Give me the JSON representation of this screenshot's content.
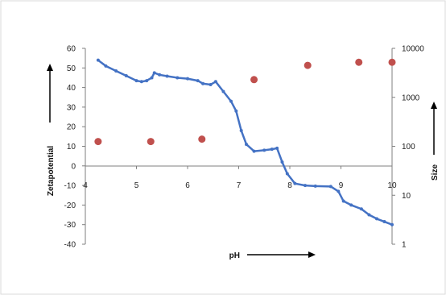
{
  "chart_data": {
    "type": "scatter",
    "xlabel": "pH",
    "ylabel": "Zetapotential",
    "y2label": "Size",
    "xlim": [
      4,
      10
    ],
    "ylim": [
      -40,
      60
    ],
    "y2lim": [
      1,
      10000
    ],
    "y2scale": "log",
    "x_ticks": [
      "4",
      "5",
      "6",
      "7",
      "8",
      "9",
      "10"
    ],
    "y_ticks": [
      "60",
      "50",
      "40",
      "30",
      "20",
      "10",
      "0",
      "-10",
      "-20",
      "-30",
      "-40"
    ],
    "y2_ticks": [
      "10000",
      "1000",
      "100",
      "10",
      "1"
    ],
    "grid": false,
    "legend": "none",
    "colors": {
      "zeta": "#4472C4",
      "size": "#C0504D"
    },
    "series": [
      {
        "axis": "left",
        "style": "line-markers",
        "x": [
          4.25,
          4.4,
          4.6,
          4.8,
          5.0,
          5.1,
          5.2,
          5.3,
          5.35,
          5.45,
          5.6,
          5.8,
          6.0,
          6.2,
          6.3,
          6.45,
          6.55,
          6.7,
          6.85,
          6.95,
          7.05,
          7.15,
          7.3,
          7.5,
          7.65,
          7.75,
          7.85,
          7.95,
          8.1,
          8.3,
          8.5,
          8.8,
          8.95,
          9.05,
          9.2,
          9.4,
          9.55,
          9.7,
          9.85,
          10.0
        ],
        "y": [
          54,
          51,
          48.5,
          46,
          43.5,
          43,
          43.5,
          45,
          47.5,
          46.5,
          45.8,
          45,
          44.5,
          43.5,
          42,
          41.5,
          43,
          38,
          33,
          28,
          18,
          11,
          7.5,
          8,
          8.5,
          9,
          2,
          -4,
          -9,
          -10,
          -10.3,
          -10.5,
          -13,
          -18,
          -20,
          -22,
          -25,
          -27,
          -28.5,
          -30
        ]
      },
      {
        "axis": "right",
        "style": "markers",
        "x": [
          4.25,
          5.28,
          6.28,
          7.3,
          8.35,
          9.35,
          10.0
        ],
        "y": [
          125,
          125,
          140,
          2300,
          4500,
          5200,
          5200
        ]
      }
    ]
  }
}
